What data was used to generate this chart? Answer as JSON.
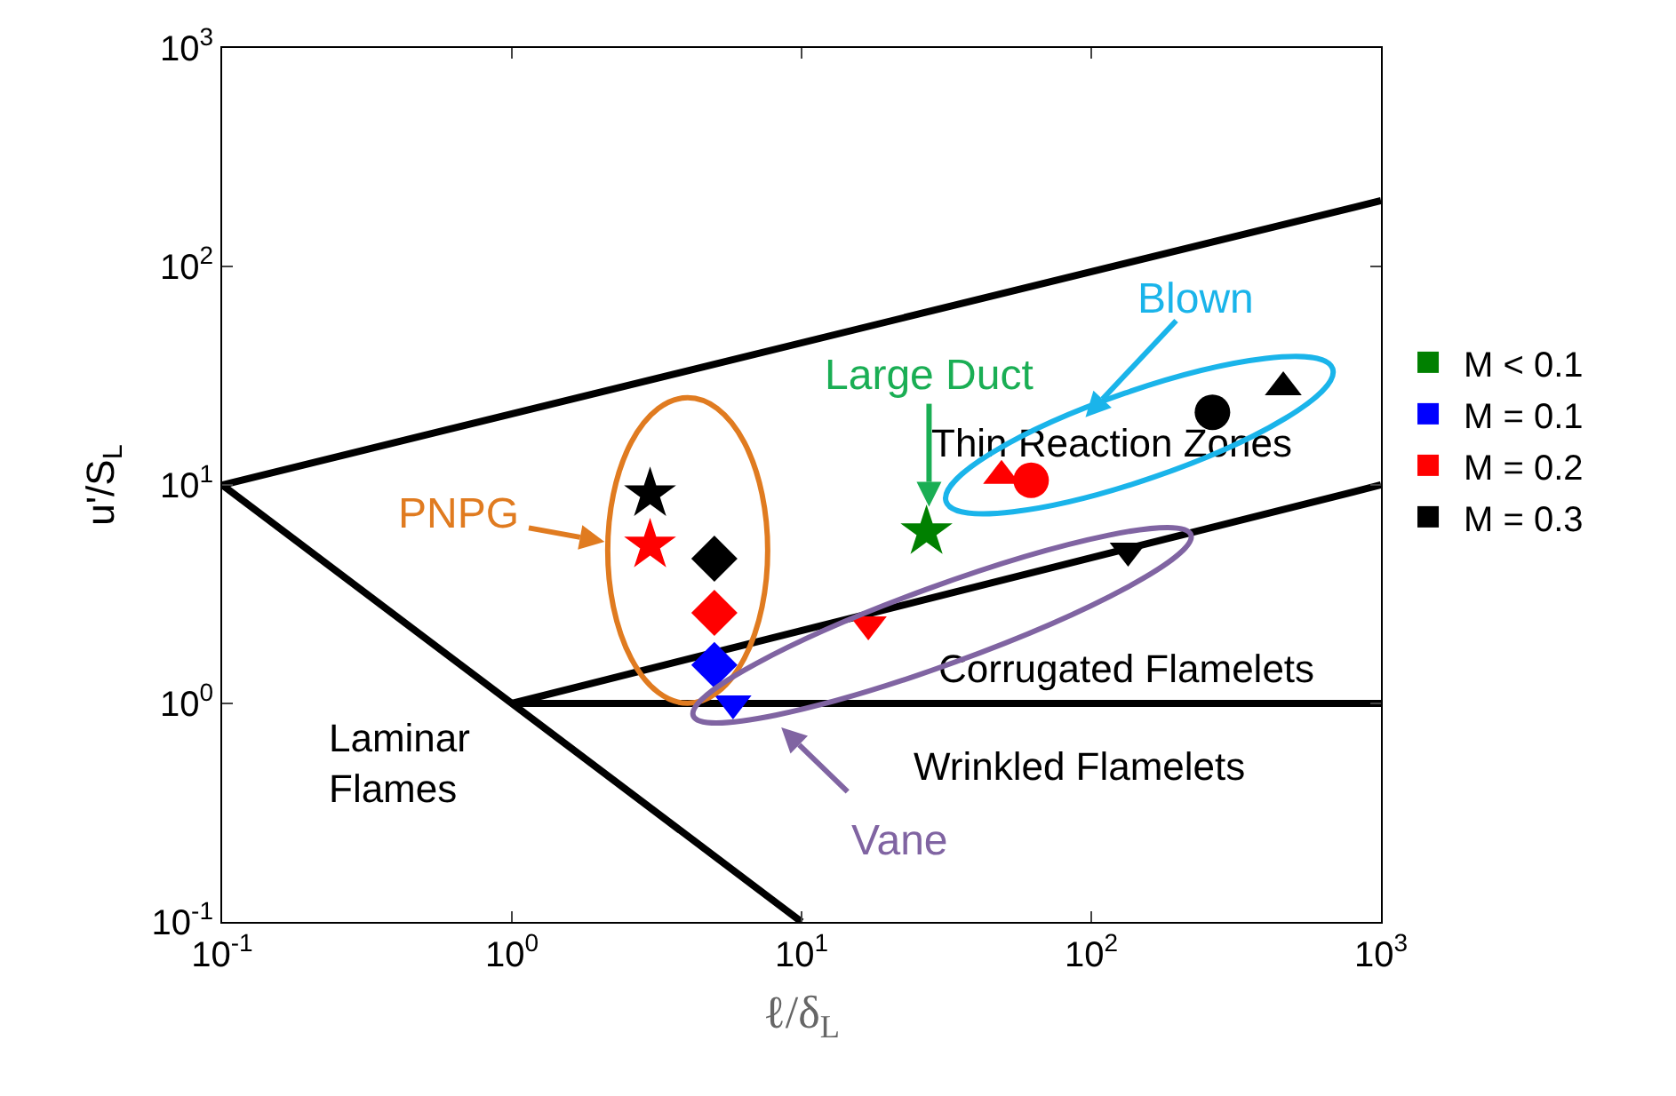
{
  "chart_data": {
    "type": "scatter",
    "xlabel": "ℓ/δ$_{L}$",
    "ylabel": "u'/S$_{L}$",
    "log": "xy",
    "xlim": [
      0.1,
      1000
    ],
    "ylim": [
      0.1,
      1000
    ],
    "xticks": [
      {
        "value": 0.1,
        "label": "10$^{-1}$"
      },
      {
        "value": 1,
        "label": "10$^{0}$"
      },
      {
        "value": 10,
        "label": "10$^{1}$"
      },
      {
        "value": 100,
        "label": "10$^{2}$"
      },
      {
        "value": 1000,
        "label": "10$^{3}$"
      }
    ],
    "yticks": [
      {
        "value": 0.1,
        "label": "10$^{-1}$"
      },
      {
        "value": 1,
        "label": "10$^{0}$"
      },
      {
        "value": 10,
        "label": "10$^{1}$"
      },
      {
        "value": 100,
        "label": "10$^{2}$"
      },
      {
        "value": 1000,
        "label": "10$^{3}$"
      }
    ],
    "grid": false,
    "legend": "right",
    "series": [
      {
        "type": "line",
        "color": "#000000",
        "x": [
          0.1,
          1000
        ],
        "values": [
          10,
          200
        ]
      },
      {
        "type": "line",
        "color": "#000000",
        "x": [
          1,
          1000
        ],
        "values": [
          1,
          10
        ]
      },
      {
        "type": "line",
        "color": "#000000",
        "x": [
          1,
          1000
        ],
        "values": [
          1,
          1
        ]
      },
      {
        "type": "line",
        "color": "#000000",
        "x": [
          0.1,
          10
        ],
        "values": [
          10,
          0.1
        ]
      },
      {
        "name": "M < 0.1",
        "color": "#008000",
        "marker": "star",
        "x": [
          27
        ],
        "values": [
          6.1
        ]
      },
      {
        "name": "M = 0.1",
        "color": "#0000ff",
        "marker": "diamond",
        "x": [
          5
        ],
        "values": [
          1.5
        ]
      },
      {
        "color": "#0000ff",
        "marker": "triangle-down",
        "x": [
          5.8
        ],
        "values": [
          1.0
        ]
      },
      {
        "name": "M = 0.2",
        "color": "#ff0000",
        "marker": "star",
        "x": [
          3
        ],
        "values": [
          5.3
        ]
      },
      {
        "color": "#ff0000",
        "marker": "diamond",
        "x": [
          5
        ],
        "values": [
          2.6
        ]
      },
      {
        "color": "#ff0000",
        "marker": "triangle-down",
        "x": [
          17
        ],
        "values": [
          2.3
        ]
      },
      {
        "color": "#ff0000",
        "marker": "triangle",
        "x": [
          49
        ],
        "values": [
          11
        ]
      },
      {
        "color": "#ff0000",
        "marker": "circle",
        "x": [
          62
        ],
        "values": [
          10.5
        ]
      },
      {
        "name": "M = 0.3",
        "color": "#000000",
        "marker": "star",
        "x": [
          3
        ],
        "values": [
          9.1
        ]
      },
      {
        "color": "#000000",
        "marker": "diamond",
        "x": [
          5
        ],
        "values": [
          4.6
        ]
      },
      {
        "color": "#000000",
        "marker": "triangle-down",
        "x": [
          134
        ],
        "values": [
          5
        ]
      },
      {
        "color": "#000000",
        "marker": "circle",
        "x": [
          262
        ],
        "values": [
          21.5
        ]
      },
      {
        "color": "#000000",
        "marker": "triangle",
        "x": [
          460
        ],
        "values": [
          28
        ]
      }
    ],
    "annotations": [
      "PNPG",
      "Large Duct",
      "Blown",
      "Vane",
      "Thin Reaction Zones",
      "Corrugated Flamelets",
      "Wrinkled Flamelets",
      "Laminar\nFlames"
    ]
  }
}
